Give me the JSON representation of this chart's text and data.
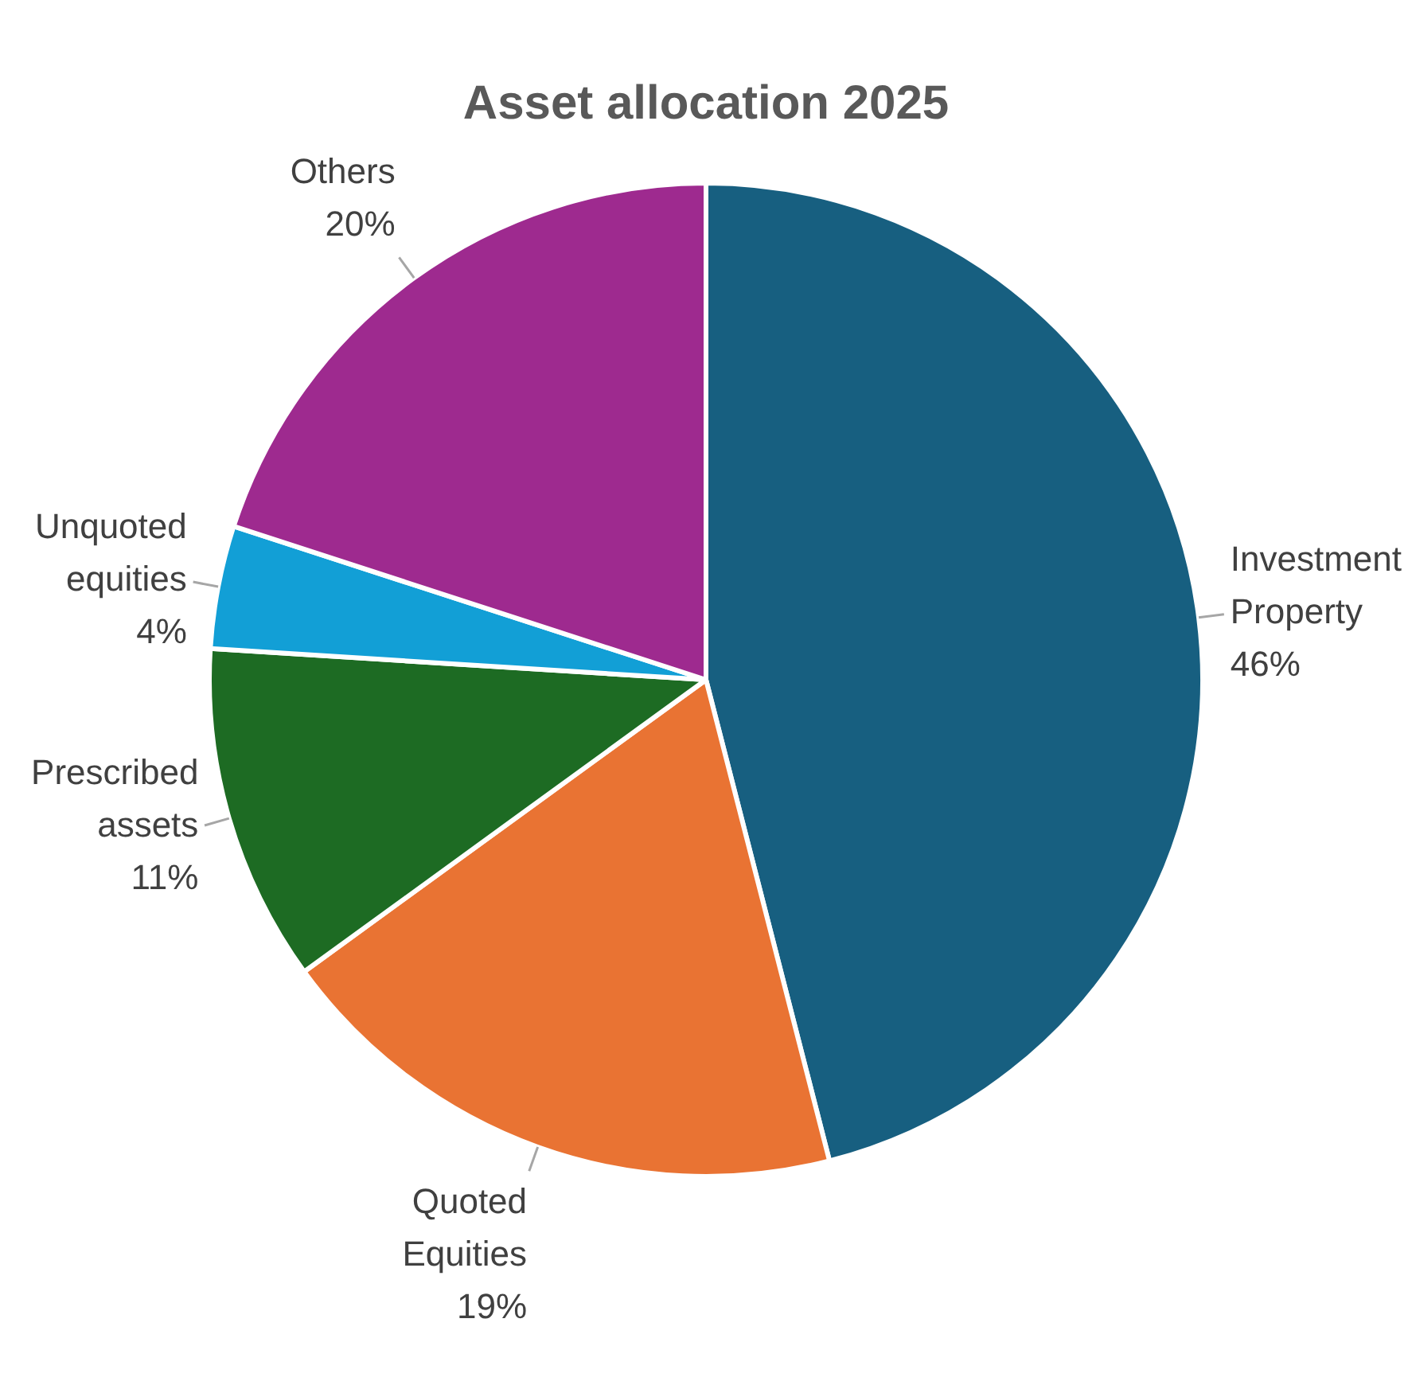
{
  "chart_data": {
    "type": "pie",
    "title": "Asset allocation 2025",
    "categories": [
      "Investment Property",
      "Quoted Equities",
      "Prescribed assets",
      "Unquoted equities",
      "Others"
    ],
    "values": [
      46,
      19,
      11,
      4,
      20
    ],
    "colors": [
      "#175f80",
      "#e97333",
      "#1d6b23",
      "#129fd6",
      "#9e2a8f"
    ],
    "value_labels": [
      "46%",
      "19%",
      "11%",
      "4%",
      "20%"
    ],
    "legend": false
  }
}
